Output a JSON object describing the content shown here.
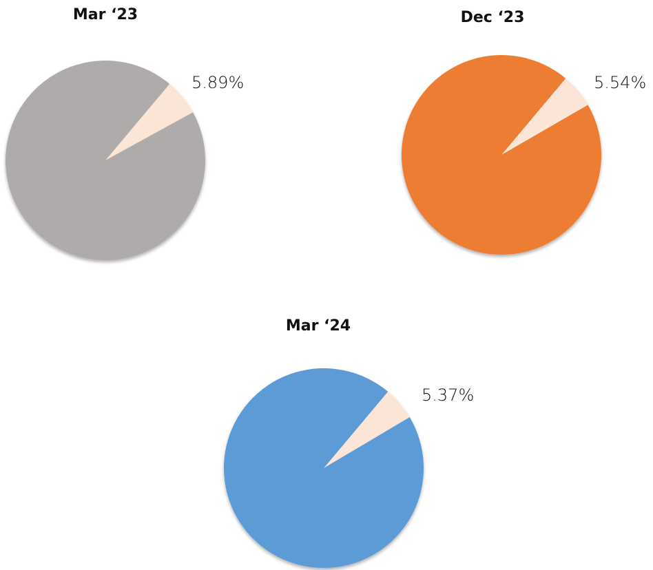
{
  "chart_data": [
    {
      "type": "pie",
      "title": "Mar ‘23",
      "categories": [
        null,
        null
      ],
      "values": [
        5.89,
        94.11
      ],
      "value_labels": [
        "5.89%",
        null
      ],
      "colors": [
        "#fbe5d6",
        "#afabaa"
      ]
    },
    {
      "type": "pie",
      "title": "Dec ‘23",
      "categories": [
        null,
        null
      ],
      "values": [
        5.54,
        94.46
      ],
      "value_labels": [
        "5.54%",
        null
      ],
      "colors": [
        "#fbe5d6",
        "#ed7d31"
      ]
    },
    {
      "type": "pie",
      "title": "Mar ‘24",
      "categories": [
        null,
        null
      ],
      "values": [
        5.37,
        94.63
      ],
      "value_labels": [
        "5.37%",
        null
      ],
      "colors": [
        "#fbe5d6",
        "#5b9bd5"
      ]
    }
  ]
}
